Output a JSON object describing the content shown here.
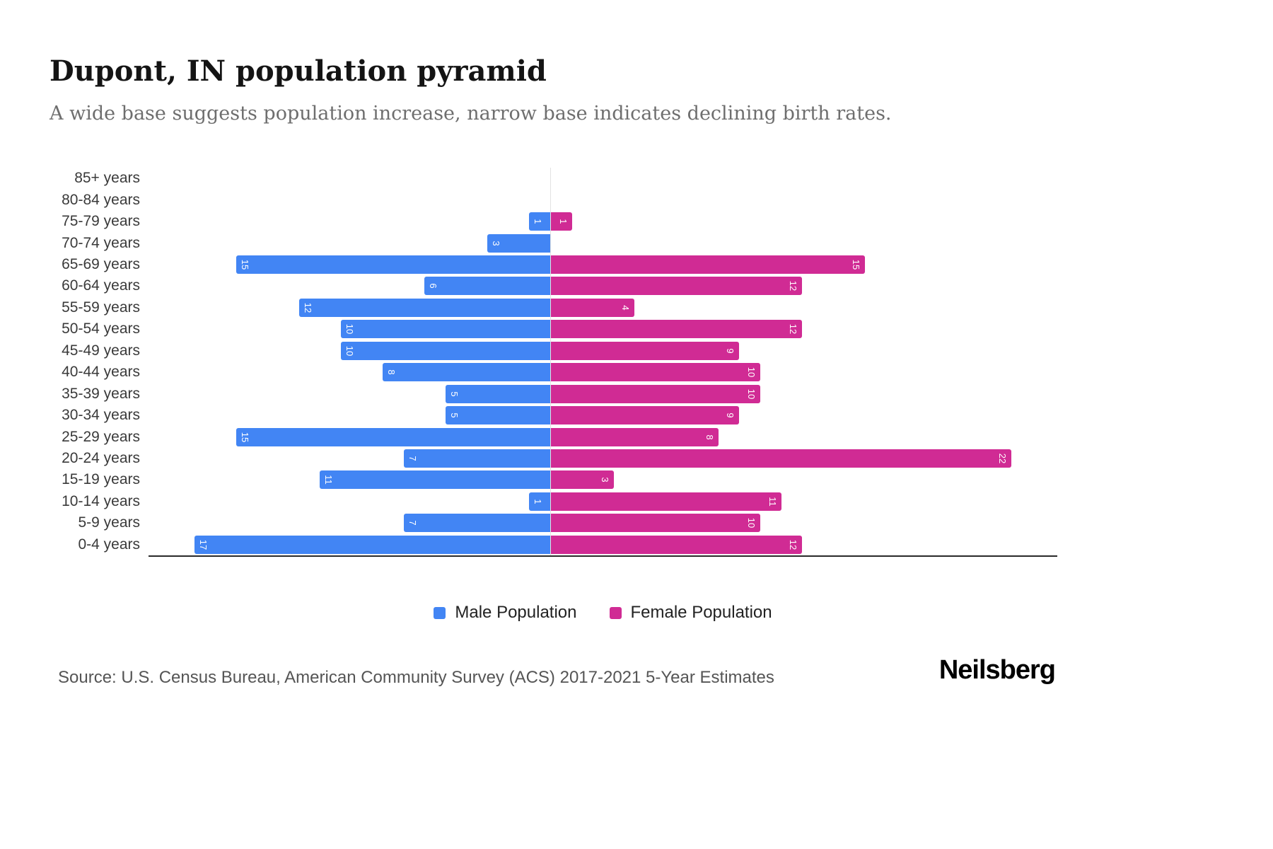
{
  "header": {
    "title": "Dupont, IN population pyramid",
    "subtitle": "A wide base suggests population increase, narrow base indicates declining birth rates."
  },
  "chart_data": {
    "type": "bar",
    "variant": "population-pyramid",
    "orientation": "horizontal",
    "categories": [
      "85+ years",
      "80-84 years",
      "75-79 years",
      "70-74 years",
      "65-69 years",
      "60-64 years",
      "55-59 years",
      "50-54 years",
      "45-49 years",
      "40-44 years",
      "35-39 years",
      "30-34 years",
      "25-29 years",
      "20-24 years",
      "15-19 years",
      "10-14 years",
      "5-9 years",
      "0-4 years"
    ],
    "series": [
      {
        "name": "Male Population",
        "side": "left",
        "color": "#4285F4",
        "values": [
          0,
          0,
          1,
          3,
          15,
          6,
          12,
          10,
          10,
          8,
          5,
          5,
          15,
          7,
          11,
          1,
          7,
          17
        ]
      },
      {
        "name": "Female Population",
        "side": "right",
        "color": "#D02B94",
        "values": [
          0,
          0,
          1,
          0,
          15,
          12,
          4,
          12,
          9,
          10,
          10,
          9,
          8,
          22,
          3,
          11,
          10,
          12
        ]
      }
    ],
    "value_labels": "white, rotated 90deg, inside outer end of each bar; zero values have no bar and no label",
    "axis": {
      "male_max": 19,
      "female_max": 24,
      "gridlines": "single vertical zero line at center",
      "baseline": "solid dark line under bottom row"
    },
    "legend_position": "bottom-center"
  },
  "legend": {
    "items": [
      {
        "label": "Male Population",
        "color": "#4285F4"
      },
      {
        "label": "Female Population",
        "color": "#D02B94"
      }
    ]
  },
  "footer": {
    "source": "Source: U.S. Census Bureau, American Community Survey (ACS) 2017-2021 5-Year Estimates",
    "brand": "Neilsberg"
  }
}
